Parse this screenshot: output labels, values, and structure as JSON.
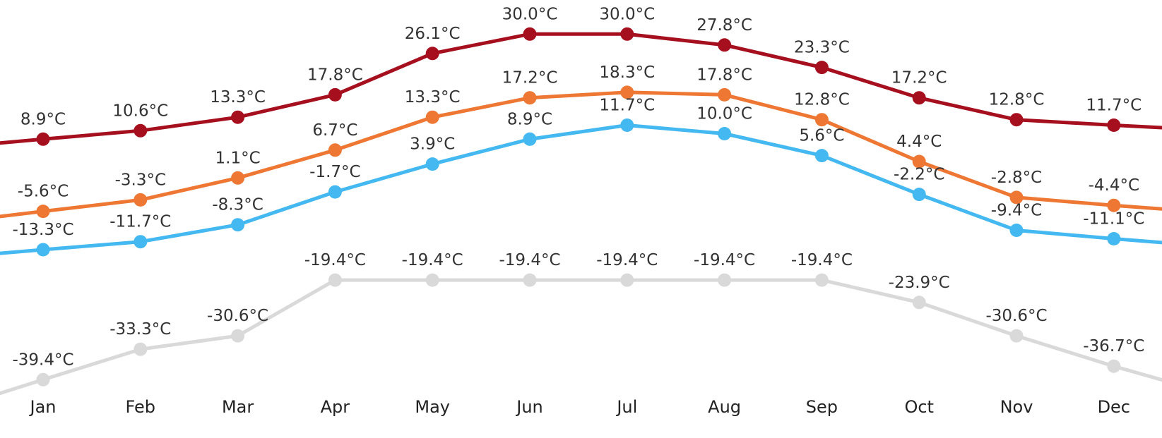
{
  "chart_data": {
    "type": "line",
    "title": "",
    "xlabel": "",
    "ylabel": "",
    "categories": [
      "Jan",
      "Feb",
      "Mar",
      "Apr",
      "May",
      "Jun",
      "Jul",
      "Aug",
      "Sep",
      "Oct",
      "Nov",
      "Dec"
    ],
    "ylim": [
      -60,
      45
    ],
    "grid": false,
    "legend": "none",
    "unit": "°C",
    "series": [
      {
        "key": "s1",
        "color": "#ED7733",
        "values": [
          -5.6,
          -3.3,
          1.1,
          6.7,
          13.3,
          17.2,
          18.3,
          17.8,
          12.8,
          4.4,
          -2.8,
          -4.4
        ],
        "labels": [
          "-5.6°C",
          "-3.3°C",
          "1.1°C",
          "6.7°C",
          "13.3°C",
          "17.2°C",
          "18.3°C",
          "17.8°C",
          "12.8°C",
          "4.4°C",
          "-2.8°C",
          "-4.4°C"
        ]
      },
      {
        "key": "s2",
        "color": "#44B8F0",
        "values": [
          -13.3,
          -11.7,
          -8.3,
          -1.7,
          3.9,
          8.9,
          11.7,
          10.0,
          5.6,
          -2.2,
          -9.4,
          -11.1
        ],
        "labels": [
          "-13.3°C",
          "-11.7°C",
          "-8.3°C",
          "-1.7°C",
          "3.9°C",
          "8.9°C",
          "11.7°C",
          "10.0°C",
          "5.6°C",
          "-2.2°C",
          "-9.4°C",
          "-11.1°C"
        ]
      },
      {
        "key": "s3",
        "color": "#A50F1E",
        "values": [
          8.9,
          10.6,
          13.3,
          17.8,
          26.1,
          30.0,
          30.0,
          27.8,
          23.3,
          17.2,
          12.8,
          11.7
        ],
        "labels": [
          "8.9°C",
          "10.6°C",
          "13.3°C",
          "17.8°C",
          "26.1°C",
          "30.0°C",
          "30.0°C",
          "27.8°C",
          "23.3°C",
          "17.2°C",
          "12.8°C",
          "11.7°C"
        ]
      },
      {
        "key": "s4",
        "color": "#D9D9D9",
        "values": [
          -39.4,
          -33.3,
          -30.6,
          -19.4,
          -19.4,
          -19.4,
          -19.4,
          -19.4,
          -19.4,
          -23.9,
          -30.6,
          -36.7
        ],
        "labels": [
          "-39.4°C",
          "-33.3°C",
          "-30.6°C",
          "-19.4°C",
          "-19.4°C",
          "-19.4°C",
          "-19.4°C",
          "-19.4°C",
          "-19.4°C",
          "-23.9°C",
          "-30.6°C",
          "-36.7°C"
        ]
      }
    ]
  }
}
